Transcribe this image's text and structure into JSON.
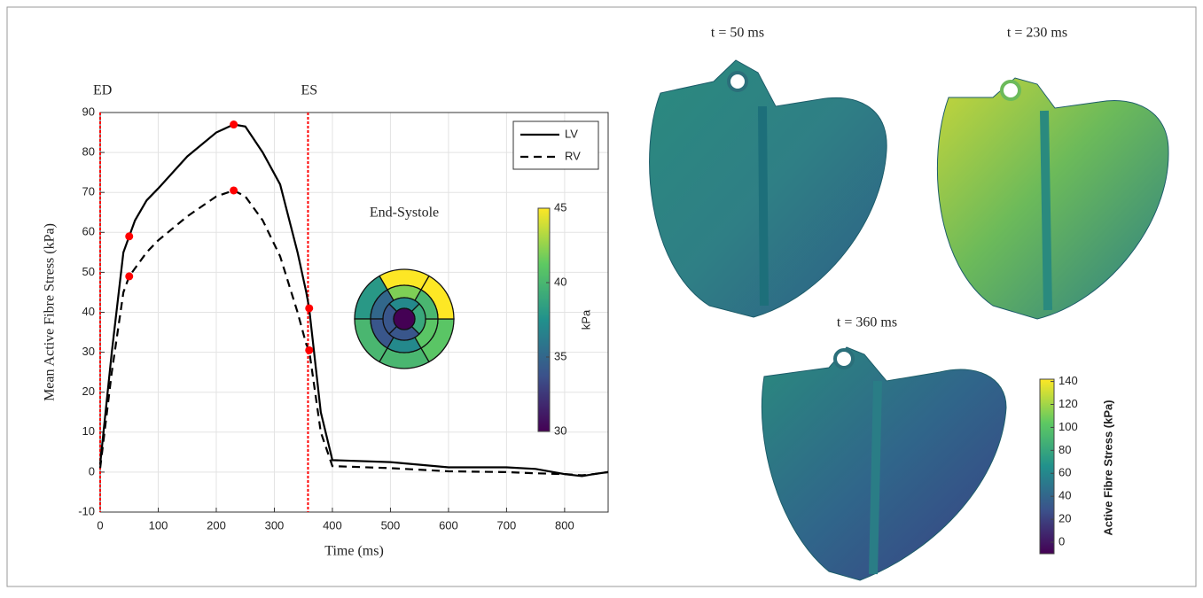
{
  "chart_data": [
    {
      "type": "line",
      "xlabel": "Time (ms)",
      "ylabel": "Mean Active Fibre Stress (kPa)",
      "x": [
        0,
        20,
        40,
        50,
        60,
        80,
        100,
        150,
        200,
        230,
        250,
        280,
        310,
        340,
        355,
        360,
        380,
        400,
        500,
        600,
        700,
        750,
        800,
        830,
        850,
        875
      ],
      "series": [
        {
          "name": "LV",
          "color": "#000000",
          "dash": false,
          "values": [
            2,
            30,
            55,
            59,
            63,
            68,
            71,
            79,
            85,
            87,
            86.5,
            80,
            72,
            55,
            45,
            41,
            15,
            3,
            2.5,
            1.2,
            1.2,
            0.8,
            -0.5,
            -1,
            -0.5,
            0
          ]
        },
        {
          "name": "RV",
          "color": "#000000",
          "dash": true,
          "values": [
            1,
            25,
            45,
            49,
            51,
            55,
            58,
            64,
            69,
            70.5,
            69,
            63,
            54,
            40,
            32,
            30.5,
            10,
            1.5,
            1,
            0.2,
            0,
            -0.3,
            -0.5,
            -0.8,
            -0.5,
            0
          ]
        }
      ],
      "highlight_points": {
        "color": "#ff0000",
        "x": [
          50,
          50,
          230,
          230,
          360,
          360
        ],
        "y": [
          59,
          49,
          87,
          70.5,
          41,
          30.5
        ]
      },
      "vlines": [
        {
          "x": 0,
          "label": "ED"
        },
        {
          "x": 358,
          "label": "ES"
        }
      ],
      "vline_color": "#ff0000",
      "xlim": [
        0,
        875
      ],
      "xticks": [
        0,
        100,
        200,
        300,
        400,
        500,
        600,
        700,
        800
      ],
      "ylim": [
        -10,
        90
      ],
      "yticks": [
        -10,
        0,
        10,
        20,
        30,
        40,
        50,
        60,
        70,
        80,
        90
      ],
      "grid": true,
      "legend": "upper right"
    },
    {
      "type": "bullseye",
      "title": "End-Systole",
      "values": [
        45,
        38,
        40,
        40,
        41,
        45,
        42,
        35,
        34,
        37,
        41,
        40,
        37,
        34,
        34,
        39,
        30
      ],
      "colormap": "viridis",
      "clim": [
        30,
        45
      ],
      "cticks": [
        30,
        35,
        40,
        45
      ],
      "clabel": "kPa"
    },
    {
      "type": "image-panels",
      "panels": [
        {
          "title": "t = 50 ms"
        },
        {
          "title": "t = 230 ms"
        },
        {
          "title": "t = 360 ms"
        }
      ],
      "colormap": "viridis",
      "clim": [
        -10,
        142
      ],
      "cticks": [
        0,
        20,
        40,
        60,
        80,
        100,
        120,
        140
      ],
      "clabel": "Active Fibre Stress (kPa)"
    }
  ]
}
